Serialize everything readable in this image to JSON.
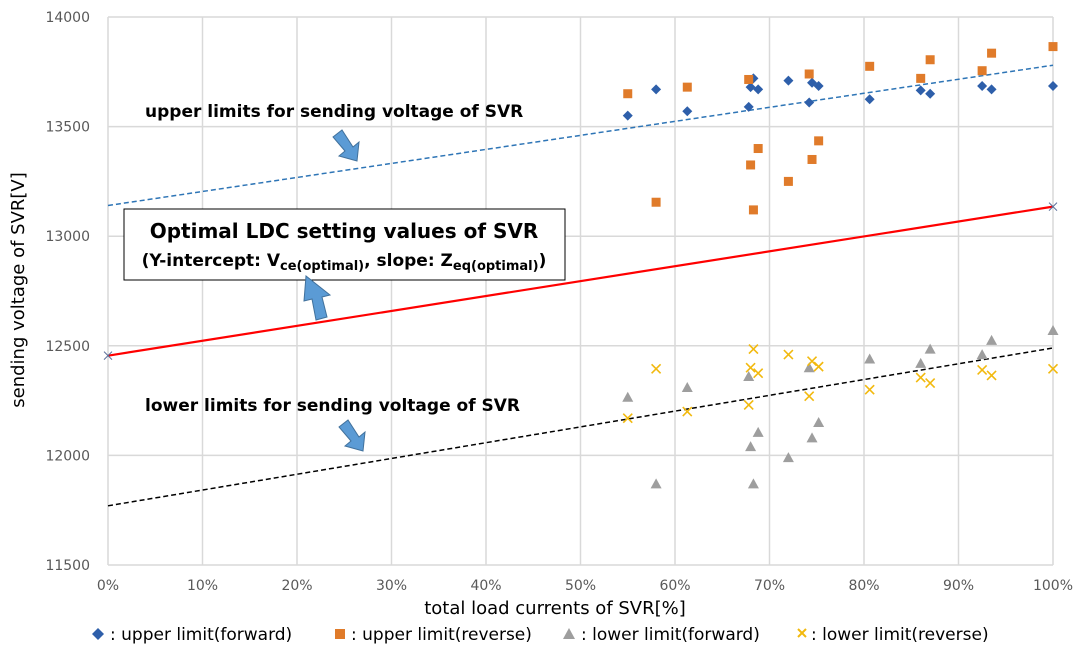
{
  "chart_data": {
    "type": "scatter",
    "xlabel": "total load currents of SVR[%]",
    "ylabel": "sending voltage of SVR[V]",
    "xlim": [
      0,
      100
    ],
    "ylim": [
      11500,
      14000
    ],
    "x_ticks": [
      "0%",
      "10%",
      "20%",
      "30%",
      "40%",
      "50%",
      "60%",
      "70%",
      "80%",
      "90%",
      "100%"
    ],
    "y_ticks": [
      "11500",
      "12000",
      "12500",
      "13000",
      "13500",
      "14000"
    ],
    "grid": true,
    "legend_position": "bottom",
    "series": [
      {
        "name": ": upper limit(forward)",
        "marker": "diamond",
        "color": "#2e5faa",
        "points": [
          [
            55,
            13550
          ],
          [
            58,
            13670
          ],
          [
            61.3,
            13570
          ],
          [
            67.8,
            13590
          ],
          [
            68,
            13680
          ],
          [
            68.3,
            13720
          ],
          [
            68.8,
            13670
          ],
          [
            72,
            13710
          ],
          [
            74.2,
            13610
          ],
          [
            74.5,
            13700
          ],
          [
            75.2,
            13685
          ],
          [
            80.6,
            13625
          ],
          [
            86,
            13665
          ],
          [
            87,
            13650
          ],
          [
            92.5,
            13685
          ],
          [
            93.5,
            13670
          ],
          [
            100,
            13685
          ]
        ]
      },
      {
        "name": ": upper limit(reverse)",
        "marker": "square",
        "color": "#e07b2a",
        "points": [
          [
            55,
            13650
          ],
          [
            58,
            13155
          ],
          [
            61.3,
            13680
          ],
          [
            67.8,
            13715
          ],
          [
            68,
            13325
          ],
          [
            68.3,
            13120
          ],
          [
            68.8,
            13400
          ],
          [
            72,
            13250
          ],
          [
            74.2,
            13740
          ],
          [
            74.5,
            13350
          ],
          [
            75.2,
            13435
          ],
          [
            80.6,
            13775
          ],
          [
            86,
            13720
          ],
          [
            87,
            13805
          ],
          [
            92.5,
            13755
          ],
          [
            93.5,
            13835
          ],
          [
            100,
            13865
          ]
        ]
      },
      {
        "name": ": lower limit(forward)",
        "marker": "triangle",
        "color": "#9e9e9e",
        "points": [
          [
            55,
            12265
          ],
          [
            58,
            11870
          ],
          [
            61.3,
            12310
          ],
          [
            67.8,
            12360
          ],
          [
            68,
            12040
          ],
          [
            68.3,
            11870
          ],
          [
            68.8,
            12105
          ],
          [
            72,
            11990
          ],
          [
            74.2,
            12400
          ],
          [
            74.5,
            12080
          ],
          [
            75.2,
            12150
          ],
          [
            80.6,
            12440
          ],
          [
            86,
            12420
          ],
          [
            87,
            12485
          ],
          [
            92.5,
            12460
          ],
          [
            93.5,
            12525
          ],
          [
            100,
            12570
          ]
        ]
      },
      {
        "name": ": lower limit(reverse)",
        "marker": "x",
        "color": "#f2b90e",
        "points": [
          [
            55,
            12170
          ],
          [
            58,
            12395
          ],
          [
            61.3,
            12200
          ],
          [
            67.8,
            12230
          ],
          [
            68,
            12400
          ],
          [
            68.3,
            12485
          ],
          [
            68.8,
            12375
          ],
          [
            72,
            12460
          ],
          [
            74.2,
            12270
          ],
          [
            74.5,
            12430
          ],
          [
            75.2,
            12405
          ],
          [
            80.6,
            12300
          ],
          [
            86,
            12355
          ],
          [
            87,
            12330
          ],
          [
            92.5,
            12390
          ],
          [
            93.5,
            12365
          ],
          [
            100,
            12395
          ]
        ]
      }
    ],
    "lines": [
      {
        "style": "dashed",
        "color": "#2e75b6",
        "from": [
          0,
          13140
        ],
        "to": [
          100,
          13780
        ]
      },
      {
        "style": "solid",
        "color": "#ff0000",
        "from": [
          0,
          12455
        ],
        "to": [
          100,
          13135
        ]
      },
      {
        "style": "dashed",
        "color": "#000000",
        "from": [
          0,
          11770
        ],
        "to": [
          100,
          12490
        ]
      }
    ],
    "annotations": {
      "upper": "upper limits for sending voltage of SVR",
      "lower": "lower limits for sending voltage of SVR",
      "box_title": "Optimal LDC setting values of SVR",
      "box_sub_1": "(Y-intercept: V",
      "box_sub_2": "ce(optimal)",
      "box_sub_3": ", slope: Z",
      "box_sub_4": "eq(optimal)",
      "box_sub_5": ")"
    }
  }
}
